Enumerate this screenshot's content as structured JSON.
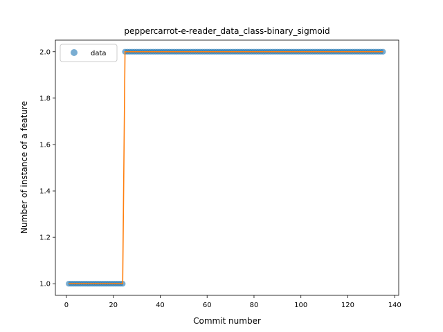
{
  "chart_data": {
    "type": "scatter",
    "title": "peppercarrot-e-reader_data_class-binary_sigmoid",
    "xlabel": "Commit number",
    "ylabel": "Number of instance of a feature",
    "xlim": [
      -4.7,
      141.7
    ],
    "ylim": [
      0.95,
      2.05
    ],
    "xticks": [
      0,
      20,
      40,
      60,
      80,
      100,
      120,
      140
    ],
    "yticks": [
      1.0,
      1.2,
      1.4,
      1.6,
      1.8,
      2.0
    ],
    "xtick_labels": [
      "0",
      "20",
      "40",
      "60",
      "80",
      "100",
      "120",
      "140"
    ],
    "ytick_labels": [
      "1.0",
      "1.2",
      "1.4",
      "1.6",
      "1.8",
      "2.0"
    ],
    "legend": {
      "position": "top-left",
      "entries": [
        "data"
      ]
    },
    "grid": false,
    "series": [
      {
        "name": "data",
        "kind": "markers",
        "color": "#1f77b4",
        "segments": [
          {
            "x_start": 1,
            "x_end": 24,
            "y": 1.0
          },
          {
            "x_start": 25,
            "x_end": 135,
            "y": 2.0
          }
        ]
      },
      {
        "kind": "line",
        "color": "#ff7f0e",
        "x": [
          1,
          24,
          25,
          135
        ],
        "y": [
          1.0,
          1.0,
          2.0,
          2.0
        ]
      }
    ]
  }
}
